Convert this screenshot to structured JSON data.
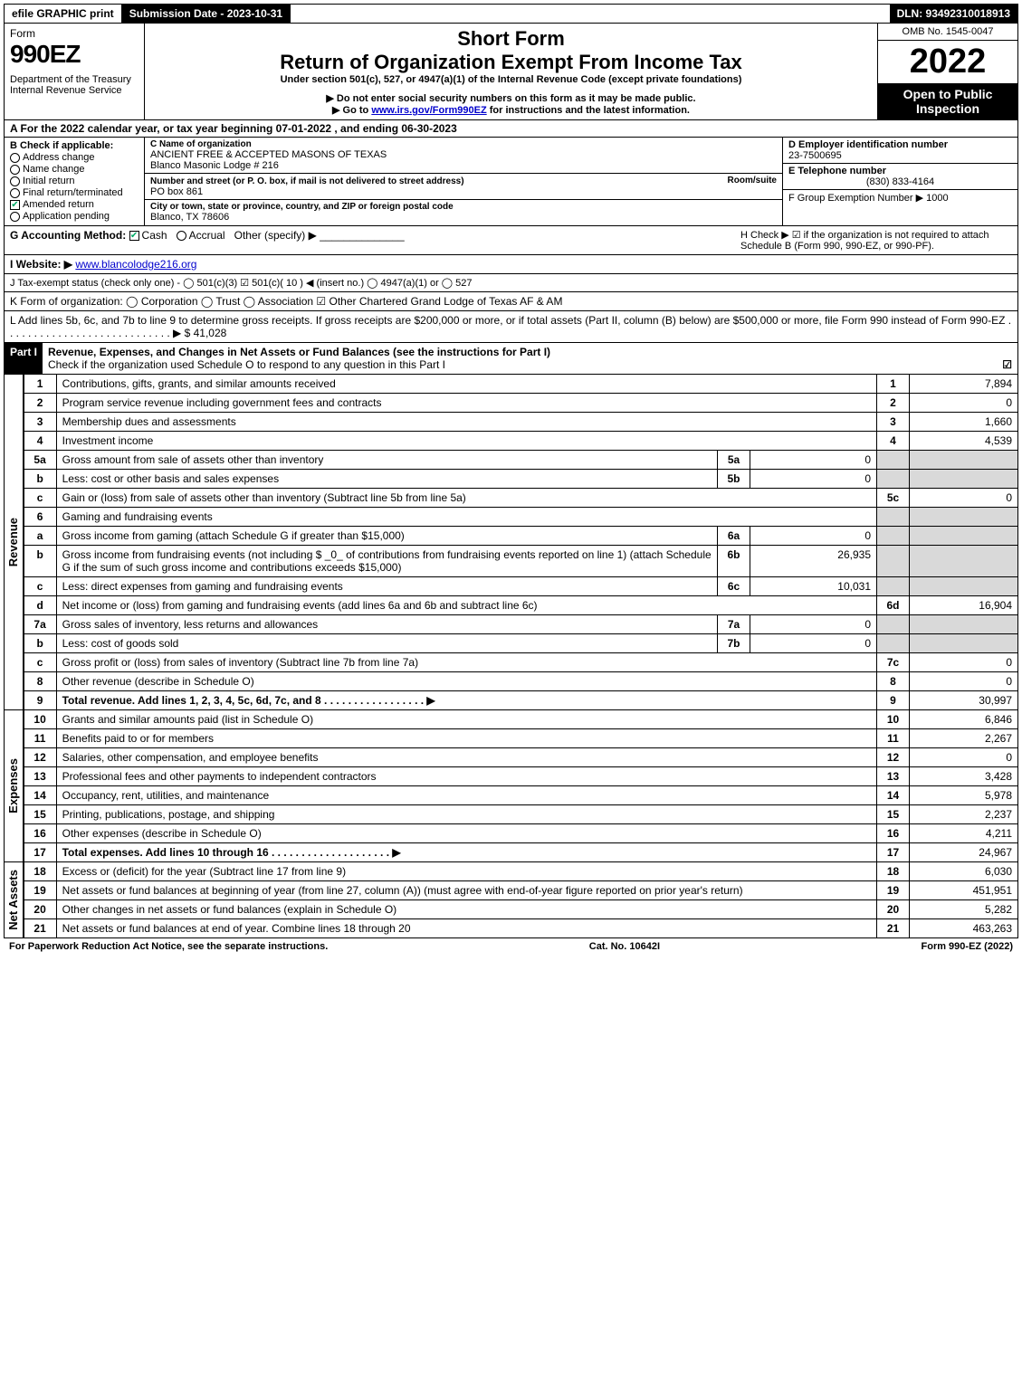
{
  "topbar": {
    "efile": "efile GRAPHIC print",
    "submission": "Submission Date - 2023-10-31",
    "dln": "DLN: 93492310018913"
  },
  "header": {
    "form_word": "Form",
    "form_no": "990EZ",
    "dept": "Department of the Treasury\nInternal Revenue Service",
    "short_form": "Short Form",
    "return_title": "Return of Organization Exempt From Income Tax",
    "under": "Under section 501(c), 527, or 4947(a)(1) of the Internal Revenue Code (except private foundations)",
    "arrow1": "▶ Do not enter social security numbers on this form as it may be made public.",
    "arrow2_pre": "▶ Go to ",
    "arrow2_link": "www.irs.gov/Form990EZ",
    "arrow2_post": " for instructions and the latest information.",
    "omb": "OMB No. 1545-0047",
    "year": "2022",
    "inspect": "Open to Public Inspection"
  },
  "A": "A  For the 2022 calendar year, or tax year beginning 07-01-2022 , and ending 06-30-2023",
  "B": {
    "header": "B  Check if applicable:",
    "items": [
      "Address change",
      "Name change",
      "Initial return",
      "Final return/terminated",
      "Amended return",
      "Application pending"
    ],
    "checked_index": 4
  },
  "C": {
    "name_label": "C Name of organization",
    "name1": "ANCIENT FREE & ACCEPTED MASONS OF TEXAS",
    "name2": "Blanco Masonic Lodge # 216",
    "street_label": "Number and street (or P. O. box, if mail is not delivered to street address)",
    "room_label": "Room/suite",
    "street": "PO box 861",
    "city_label": "City or town, state or province, country, and ZIP or foreign postal code",
    "city": "Blanco, TX  78606"
  },
  "D": {
    "label": "D Employer identification number",
    "value": "23-7500695"
  },
  "E": {
    "label": "E Telephone number",
    "value": "(830) 833-4164"
  },
  "F": {
    "label": "F Group Exemption Number   ▶ 1000"
  },
  "G": {
    "text": "G Accounting Method:   ",
    "cash": "Cash",
    "accrual": "Accrual",
    "other": "Other (specify) ▶"
  },
  "H": "H   Check ▶  ☑  if the organization is not required to attach Schedule B (Form 990, 990-EZ, or 990-PF).",
  "I": {
    "label": "I Website: ▶",
    "value": "www.blancolodge216.org"
  },
  "J": "J Tax-exempt status (check only one) -  ◯ 501(c)(3)  ☑  501(c)( 10 ) ◀ (insert no.)  ◯ 4947(a)(1) or  ◯ 527",
  "K": "K Form of organization:   ◯ Corporation   ◯ Trust   ◯ Association   ☑ Other Chartered Grand Lodge of Texas AF & AM",
  "L": {
    "text": "L Add lines 5b, 6c, and 7b to line 9 to determine gross receipts. If gross receipts are $200,000 or more, or if total assets (Part II, column (B) below) are $500,000 or more, file Form 990 instead of Form 990-EZ  .  .  .  .  .  .  .  .  .  .  .  .  .  .  .  .  .  .  .  .  .  .  .  .  .  .  .  .   ▶ $ ",
    "value": "41,028"
  },
  "part1": {
    "label": "Part I",
    "title": "Revenue, Expenses, and Changes in Net Assets or Fund Balances (see the instructions for Part I)",
    "sub": "Check if the organization used Schedule O to respond to any question in this Part I",
    "checked": "☑"
  },
  "sections": {
    "revenue": "Revenue",
    "expenses": "Expenses",
    "netassets": "Net Assets"
  },
  "rows": [
    {
      "n": "1",
      "desc": "Contributions, gifts, grants, and similar amounts received",
      "rn": "1",
      "rv": "7,894"
    },
    {
      "n": "2",
      "desc": "Program service revenue including government fees and contracts",
      "rn": "2",
      "rv": "0"
    },
    {
      "n": "3",
      "desc": "Membership dues and assessments",
      "rn": "3",
      "rv": "1,660"
    },
    {
      "n": "4",
      "desc": "Investment income",
      "rn": "4",
      "rv": "4,539"
    },
    {
      "n": "5a",
      "desc": "Gross amount from sale of assets other than inventory",
      "mid_n": "5a",
      "mid_v": "0"
    },
    {
      "n": "b",
      "desc": "Less: cost or other basis and sales expenses",
      "mid_n": "5b",
      "mid_v": "0"
    },
    {
      "n": "c",
      "desc": "Gain or (loss) from sale of assets other than inventory (Subtract line 5b from line 5a)",
      "rn": "5c",
      "rv": "0"
    },
    {
      "n": "6",
      "desc": "Gaming and fundraising events"
    },
    {
      "n": "a",
      "desc": "Gross income from gaming (attach Schedule G if greater than $15,000)",
      "mid_n": "6a",
      "mid_v": "0"
    },
    {
      "n": "b",
      "desc": "Gross income from fundraising events (not including $ _0_ of contributions from fundraising events reported on line 1) (attach Schedule G if the sum of such gross income and contributions exceeds $15,000)",
      "mid_n": "6b",
      "mid_v": "26,935"
    },
    {
      "n": "c",
      "desc": "Less: direct expenses from gaming and fundraising events",
      "mid_n": "6c",
      "mid_v": "10,031"
    },
    {
      "n": "d",
      "desc": "Net income or (loss) from gaming and fundraising events (add lines 6a and 6b and subtract line 6c)",
      "rn": "6d",
      "rv": "16,904"
    },
    {
      "n": "7a",
      "desc": "Gross sales of inventory, less returns and allowances",
      "mid_n": "7a",
      "mid_v": "0"
    },
    {
      "n": "b",
      "desc": "Less: cost of goods sold",
      "mid_n": "7b",
      "mid_v": "0"
    },
    {
      "n": "c",
      "desc": "Gross profit or (loss) from sales of inventory (Subtract line 7b from line 7a)",
      "rn": "7c",
      "rv": "0"
    },
    {
      "n": "8",
      "desc": "Other revenue (describe in Schedule O)",
      "rn": "8",
      "rv": "0"
    },
    {
      "n": "9",
      "desc": "Total revenue. Add lines 1, 2, 3, 4, 5c, 6d, 7c, and 8   .  .  .  .  .  .  .  .  .  .  .  .  .  .  .  .  .   ▶",
      "rn": "9",
      "rv": "30,997",
      "bold": true
    }
  ],
  "exp_rows": [
    {
      "n": "10",
      "desc": "Grants and similar amounts paid (list in Schedule O)",
      "rn": "10",
      "rv": "6,846"
    },
    {
      "n": "11",
      "desc": "Benefits paid to or for members",
      "rn": "11",
      "rv": "2,267"
    },
    {
      "n": "12",
      "desc": "Salaries, other compensation, and employee benefits",
      "rn": "12",
      "rv": "0"
    },
    {
      "n": "13",
      "desc": "Professional fees and other payments to independent contractors",
      "rn": "13",
      "rv": "3,428"
    },
    {
      "n": "14",
      "desc": "Occupancy, rent, utilities, and maintenance",
      "rn": "14",
      "rv": "5,978"
    },
    {
      "n": "15",
      "desc": "Printing, publications, postage, and shipping",
      "rn": "15",
      "rv": "2,237"
    },
    {
      "n": "16",
      "desc": "Other expenses (describe in Schedule O)",
      "rn": "16",
      "rv": "4,211"
    },
    {
      "n": "17",
      "desc": "Total expenses. Add lines 10 through 16   .  .  .  .  .  .  .  .  .  .  .  .  .  .  .  .  .  .  .  .   ▶",
      "rn": "17",
      "rv": "24,967",
      "bold": true
    }
  ],
  "na_rows": [
    {
      "n": "18",
      "desc": "Excess or (deficit) for the year (Subtract line 17 from line 9)",
      "rn": "18",
      "rv": "6,030"
    },
    {
      "n": "19",
      "desc": "Net assets or fund balances at beginning of year (from line 27, column (A)) (must agree with end-of-year figure reported on prior year's return)",
      "rn": "19",
      "rv": "451,951"
    },
    {
      "n": "20",
      "desc": "Other changes in net assets or fund balances (explain in Schedule O)",
      "rn": "20",
      "rv": "5,282"
    },
    {
      "n": "21",
      "desc": "Net assets or fund balances at end of year. Combine lines 18 through 20",
      "rn": "21",
      "rv": "463,263"
    }
  ],
  "footer": {
    "left": "For Paperwork Reduction Act Notice, see the separate instructions.",
    "mid": "Cat. No. 10642I",
    "right": "Form 990-EZ (2022)"
  }
}
